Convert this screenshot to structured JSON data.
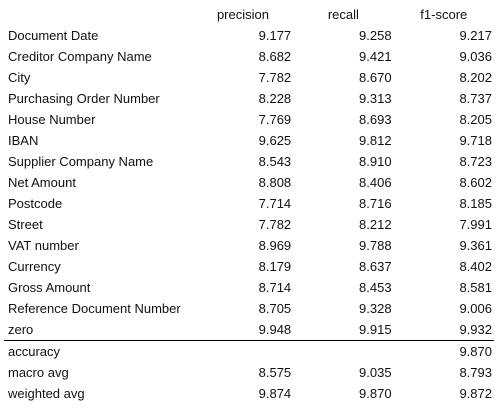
{
  "table": {
    "headers": [
      "",
      "precision",
      "recall",
      "f1-score"
    ],
    "class_rows": [
      {
        "label": "Document Date",
        "precision": "9.177",
        "recall": "9.258",
        "f1": "9.217"
      },
      {
        "label": "Creditor Company Name",
        "precision": "8.682",
        "recall": "9.421",
        "f1": "9.036"
      },
      {
        "label": "City",
        "precision": "7.782",
        "recall": "8.670",
        "f1": "8.202"
      },
      {
        "label": "Purchasing Order Number",
        "precision": "8.228",
        "recall": "9.313",
        "f1": "8.737"
      },
      {
        "label": "House Number",
        "precision": "7.769",
        "recall": "8.693",
        "f1": "8.205"
      },
      {
        "label": "IBAN",
        "precision": "9.625",
        "recall": "9.812",
        "f1": "9.718"
      },
      {
        "label": "Supplier Company Name",
        "precision": "8.543",
        "recall": "8.910",
        "f1": "8.723"
      },
      {
        "label": "Net Amount",
        "precision": "8.808",
        "recall": "8.406",
        "f1": "8.602"
      },
      {
        "label": "Postcode",
        "precision": "7.714",
        "recall": "8.716",
        "f1": "8.185"
      },
      {
        "label": "Street",
        "precision": "7.782",
        "recall": "8.212",
        "f1": "7.991"
      },
      {
        "label": "VAT number",
        "precision": "8.969",
        "recall": "9.788",
        "f1": "9.361"
      },
      {
        "label": "Currency",
        "precision": "8.179",
        "recall": "8.637",
        "f1": "8.402"
      },
      {
        "label": "Gross Amount",
        "precision": "8.714",
        "recall": "8.453",
        "f1": "8.581"
      },
      {
        "label": "Reference Document Number",
        "precision": "8.705",
        "recall": "9.328",
        "f1": "9.006"
      },
      {
        "label": "zero",
        "precision": "9.948",
        "recall": "9.915",
        "f1": "9.932"
      }
    ],
    "summary_rows": [
      {
        "label": "accuracy",
        "precision": "",
        "recall": "",
        "f1": "9.870"
      },
      {
        "label": "macro avg",
        "precision": "8.575",
        "recall": "9.035",
        "f1": "8.793"
      },
      {
        "label": "weighted avg",
        "precision": "9.874",
        "recall": "9.870",
        "f1": "9.872"
      }
    ]
  }
}
